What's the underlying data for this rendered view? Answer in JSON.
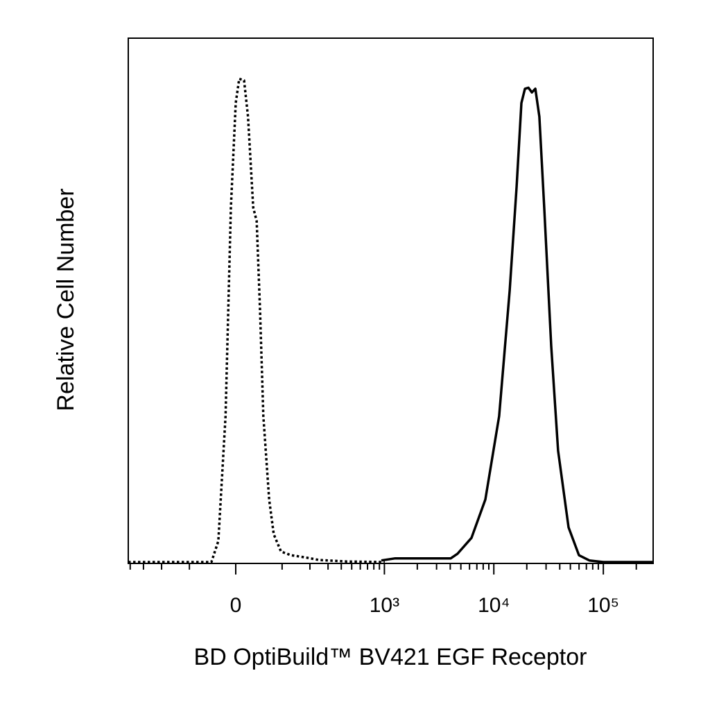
{
  "chart_data": {
    "type": "line",
    "x_label": "BD OptiBuild™ BV421 EGF Receptor",
    "y_label": "Relative Cell Number",
    "xscale": "biexponential",
    "xlim": [
      -417,
      285000
    ],
    "ylim": [
      0,
      100
    ],
    "xticks": [
      {
        "value": 0,
        "label": "0"
      },
      {
        "value": 1000,
        "label": "10³"
      },
      {
        "value": 10000,
        "label": "10⁴"
      },
      {
        "value": 100000,
        "label": "10⁵"
      }
    ],
    "xminorticks": [
      -400,
      -300,
      -200,
      -100,
      100,
      200,
      300,
      400,
      500,
      600,
      700,
      800,
      900,
      2000,
      3000,
      4000,
      5000,
      6000,
      7000,
      8000,
      9000,
      20000,
      30000,
      40000,
      50000,
      60000,
      70000,
      80000,
      90000,
      200000
    ],
    "series": [
      {
        "color": "#000000",
        "style": "dotted",
        "x": [
          -417,
          -47,
          -33,
          -19,
          -9,
          0,
          6.4,
          15.5,
          23,
          33,
          40,
          47,
          54,
          67,
          78,
          97,
          127,
          178,
          245,
          449,
          1008
        ],
        "values": [
          0,
          0,
          4.0,
          27.8,
          67.5,
          87.4,
          92,
          91.7,
          84.8,
          67.5,
          64.9,
          47.7,
          27.8,
          11.9,
          5.3,
          2.0,
          1.3,
          0.9,
          0.4,
          0.1,
          0
        ]
      },
      {
        "color": "#000000",
        "style": "solid",
        "x": [
          938,
          1257,
          4040,
          4670,
          6250,
          8370,
          11190,
          13960,
          16150,
          17870,
          19230,
          20680,
          22260,
          23940,
          26050,
          28860,
          33440,
          38630,
          48140,
          59930,
          74540,
          99790,
          285000
        ],
        "values": [
          0.3,
          0.7,
          0.7,
          1.6,
          4.6,
          11.9,
          27.8,
          51.7,
          71.5,
          87.4,
          90.1,
          90.3,
          89.4,
          90.1,
          84.8,
          67.5,
          41.1,
          21.2,
          6.6,
          1.3,
          0.3,
          0,
          0
        ]
      }
    ]
  }
}
